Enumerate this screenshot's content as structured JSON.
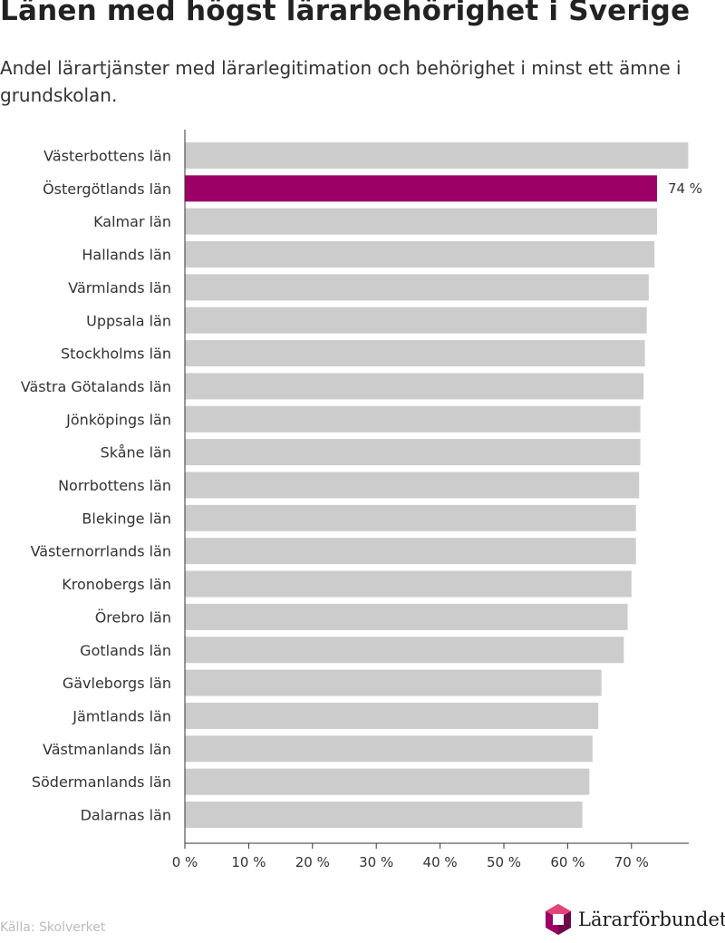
{
  "title": "Länen med högst lärarbehörighet i Sverige",
  "subtitle": "Andel lärartjänster med lärarlegitimation och behörighet i minst ett ämne i grundskolan.",
  "source": "Källa: Skolverket",
  "logo_text": "Lärarförbundet",
  "colors": {
    "bar": "#cccccc",
    "highlight": "#9c0066",
    "axis": "#333333"
  },
  "chart_data": {
    "type": "bar",
    "orientation": "horizontal",
    "categories": [
      "Västerbottens län",
      "Östergötlands län",
      "Kalmar län",
      "Hallands län",
      "Värmlands län",
      "Uppsala län",
      "Stockholms län",
      "Västra Götalands län",
      "Jönköpings län",
      "Skåne län",
      "Norrbottens län",
      "Blekinge län",
      "Västernorrlands län",
      "Kronobergs län",
      "Örebro län",
      "Gotlands län",
      "Gävleborgs län",
      "Jämtlands län",
      "Västmanlands län",
      "Södermanlands län",
      "Dalarnas län"
    ],
    "values": [
      78.9,
      74,
      74,
      73.6,
      72.7,
      72.4,
      72.1,
      71.9,
      71.4,
      71.4,
      71.2,
      70.7,
      70.7,
      70,
      69.4,
      68.8,
      65.3,
      64.8,
      63.9,
      63.4,
      62.3
    ],
    "highlight_index": 1,
    "highlight_label": "74 %",
    "xticks": [
      "0 %",
      "10 %",
      "20 %",
      "30 %",
      "40 %",
      "50 %",
      "60 %",
      "70 %"
    ],
    "xtick_values": [
      0,
      10,
      20,
      30,
      40,
      50,
      60,
      70
    ],
    "xlim": [
      0,
      79
    ],
    "grid": false
  }
}
